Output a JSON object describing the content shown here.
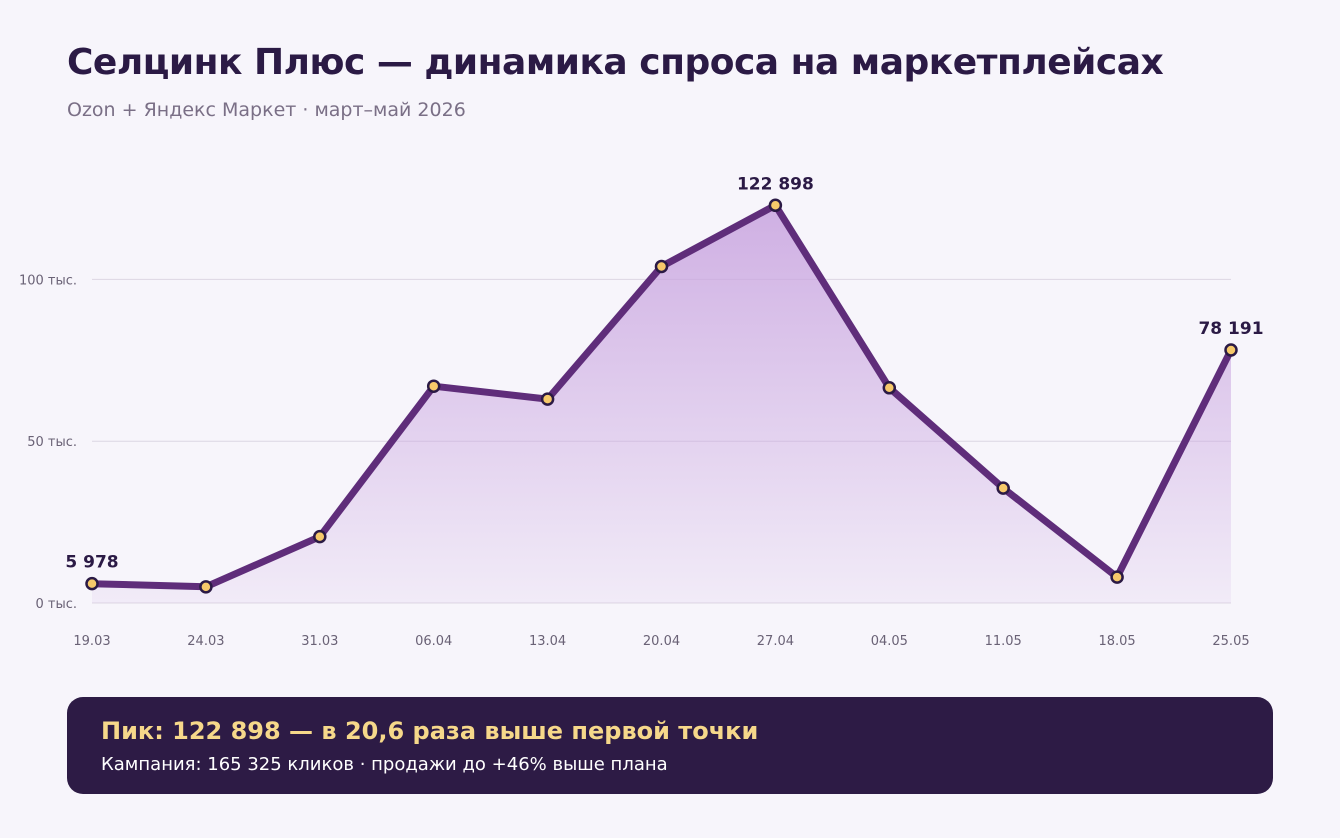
{
  "header": {
    "title": "Селцинк Плюс — динамика спроса на маркетплейсах",
    "subtitle": "Ozon + Яндекс Маркет · март–май 2026"
  },
  "colors": {
    "line": "#5f2d7a",
    "area": "#c8a3df",
    "point_fill": "#f6c96a",
    "point_stroke": "#2b1a45",
    "grid": "#dcd6e3",
    "panel_bg": "#2d1b45",
    "panel_highlight": "#f6d88a"
  },
  "chart_data": {
    "type": "area",
    "categories": [
      "19.03",
      "24.03",
      "31.03",
      "06.04",
      "13.04",
      "20.04",
      "27.04",
      "04.05",
      "11.05",
      "18.05",
      "25.05"
    ],
    "values": [
      5978,
      5000,
      20500,
      67000,
      63000,
      104000,
      122898,
      66500,
      35500,
      8000,
      78191
    ],
    "yticks": [
      {
        "value": 0,
        "label": "0 тыс."
      },
      {
        "value": 50000,
        "label": "50 тыс."
      },
      {
        "value": 100000,
        "label": "100 тыс."
      }
    ],
    "ylim": [
      0,
      130000
    ],
    "grid": true,
    "data_labels": [
      {
        "index": 0,
        "text": "5 978"
      },
      {
        "index": 6,
        "text": "122 898"
      },
      {
        "index": 10,
        "text": "78 191"
      }
    ]
  },
  "summary": {
    "headline": "Пик: 122 898 — в 20,6 раза выше первой точки",
    "details": "Кампания: 165 325 кликов · продажи до +46% выше плана"
  }
}
